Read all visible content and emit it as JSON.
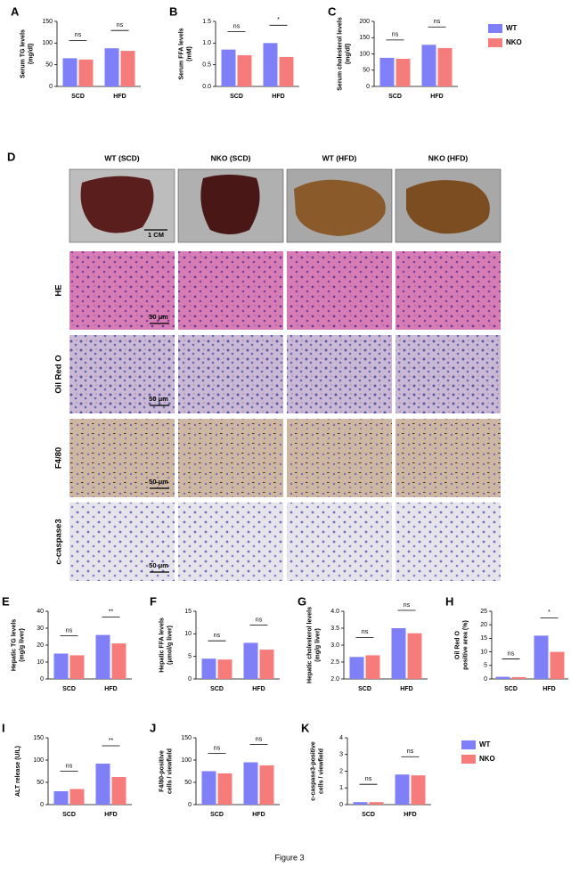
{
  "chart_data": [
    {
      "type": "bar",
      "panel": "A",
      "y_label": [
        "Serum TG levels",
        "(mg/dl)"
      ],
      "categories": [
        "SCD",
        "HFD"
      ],
      "series": [
        {
          "name": "WT",
          "color": "#7f7ff7",
          "values": [
            65,
            88
          ]
        },
        {
          "name": "NKO",
          "color": "#f67c7c",
          "values": [
            62,
            82
          ]
        }
      ],
      "annotations": [
        "ns",
        "ns"
      ],
      "ylim": [
        0,
        150
      ],
      "yticks": [
        0,
        50,
        100,
        150
      ]
    },
    {
      "type": "bar",
      "panel": "B",
      "y_label": [
        "Serum FFA levels",
        "(mM)"
      ],
      "categories": [
        "SCD",
        "HFD"
      ],
      "series": [
        {
          "name": "WT",
          "color": "#7f7ff7",
          "values": [
            0.85,
            1.0
          ]
        },
        {
          "name": "NKO",
          "color": "#f67c7c",
          "values": [
            0.72,
            0.68
          ]
        }
      ],
      "annotations": [
        "ns",
        "*"
      ],
      "ylim": [
        0,
        1.5
      ],
      "yticks": [
        {
          "value": 0,
          "label": "0.0"
        },
        0.5,
        {
          "value": 1,
          "label": "1.0"
        },
        1.5
      ]
    },
    {
      "type": "bar",
      "panel": "C",
      "y_label": [
        "Serum cholesterol levels",
        "(mg/dl)"
      ],
      "categories": [
        "SCD",
        "HFD"
      ],
      "series": [
        {
          "name": "WT",
          "color": "#7f7ff7",
          "values": [
            88,
            128
          ]
        },
        {
          "name": "NKO",
          "color": "#f67c7c",
          "values": [
            85,
            118
          ]
        }
      ],
      "annotations": [
        "ns",
        "ns"
      ],
      "ylim": [
        0,
        200
      ],
      "yticks": [
        0,
        50,
        100,
        150,
        200
      ],
      "legend": "right"
    },
    {
      "type": "bar",
      "panel": "E",
      "y_label": [
        "Hepatic TG levels",
        "(mg/g liver)"
      ],
      "categories": [
        "SCD",
        "HFD"
      ],
      "series": [
        {
          "name": "WT",
          "color": "#7f7ff7",
          "values": [
            15,
            26
          ]
        },
        {
          "name": "NKO",
          "color": "#f67c7c",
          "values": [
            14,
            21
          ]
        }
      ],
      "annotations": [
        "ns",
        "**"
      ],
      "ylim": [
        0,
        40
      ],
      "yticks": [
        0,
        10,
        20,
        30,
        40
      ]
    },
    {
      "type": "bar",
      "panel": "F",
      "y_label": [
        "Hepatic FFA levels",
        "(μmol/g liver)"
      ],
      "categories": [
        "SCD",
        "HFD"
      ],
      "series": [
        {
          "name": "WT",
          "color": "#7f7ff7",
          "values": [
            4.5,
            8
          ]
        },
        {
          "name": "NKO",
          "color": "#f67c7c",
          "values": [
            4.3,
            6.5
          ]
        }
      ],
      "annotations": [
        "ns",
        "ns"
      ],
      "ylim": [
        0,
        15
      ],
      "yticks": [
        0,
        5,
        10,
        15
      ]
    },
    {
      "type": "bar",
      "panel": "G",
      "y_label": [
        "Hepatic cholesterol levels",
        "(mg/g liver)"
      ],
      "categories": [
        "SCD",
        "HFD"
      ],
      "series": [
        {
          "name": "WT",
          "color": "#7f7ff7",
          "values": [
            2.65,
            3.5
          ]
        },
        {
          "name": "NKO",
          "color": "#f67c7c",
          "values": [
            2.7,
            3.35
          ]
        }
      ],
      "annotations": [
        "ns",
        "ns"
      ],
      "ylim": [
        2,
        4
      ],
      "yticks": [
        {
          "value": 2,
          "label": "2.0"
        },
        2.5,
        {
          "value": 3,
          "label": "3.0"
        },
        3.5,
        {
          "value": 4,
          "label": "4.0"
        }
      ]
    },
    {
      "type": "bar",
      "panel": "H",
      "y_label": [
        "Oil Red O",
        "positive area (%)"
      ],
      "categories": [
        "SCD",
        "HFD"
      ],
      "series": [
        {
          "name": "WT",
          "color": "#7f7ff7",
          "values": [
            0.8,
            16
          ]
        },
        {
          "name": "NKO",
          "color": "#f67c7c",
          "values": [
            0.7,
            10
          ]
        }
      ],
      "annotations": [
        "ns",
        "*"
      ],
      "ylim": [
        0,
        25
      ],
      "yticks": [
        0,
        5,
        10,
        15,
        20,
        25
      ]
    },
    {
      "type": "bar",
      "panel": "I",
      "y_label": [
        "ALT release (U/L)"
      ],
      "categories": [
        "SCD",
        "HFD"
      ],
      "series": [
        {
          "name": "WT",
          "color": "#7f7ff7",
          "values": [
            30,
            92
          ]
        },
        {
          "name": "NKO",
          "color": "#f67c7c",
          "values": [
            35,
            62
          ]
        }
      ],
      "annotations": [
        "ns",
        "**"
      ],
      "ylim": [
        0,
        150
      ],
      "yticks": [
        0,
        50,
        100,
        150
      ]
    },
    {
      "type": "bar",
      "panel": "J",
      "y_label": [
        "F4/80-positive",
        "cells / viewfield"
      ],
      "categories": [
        "SCD",
        "HFD"
      ],
      "series": [
        {
          "name": "WT",
          "color": "#7f7ff7",
          "values": [
            75,
            95
          ]
        },
        {
          "name": "NKO",
          "color": "#f67c7c",
          "values": [
            70,
            88
          ]
        }
      ],
      "annotations": [
        "ns",
        "ns"
      ],
      "ylim": [
        0,
        150
      ],
      "yticks": [
        0,
        50,
        100,
        150
      ]
    },
    {
      "type": "bar",
      "panel": "K",
      "y_label": [
        "c-caspase3-positive",
        "cells / viewfield"
      ],
      "categories": [
        "SCD",
        "HFD"
      ],
      "series": [
        {
          "name": "WT",
          "color": "#7f7ff7",
          "values": [
            0.15,
            1.8
          ]
        },
        {
          "name": "NKO",
          "color": "#f67c7c",
          "values": [
            0.15,
            1.75
          ]
        }
      ],
      "annotations": [
        "ns",
        "ns"
      ],
      "ylim": [
        0,
        4
      ],
      "yticks": [
        0,
        1,
        2,
        3,
        4
      ],
      "legend": "right"
    }
  ],
  "micrograph_panel": {
    "panel": "D",
    "columns": [
      "WT (SCD)",
      "NKO (SCD)",
      "WT (HFD)",
      "NKO (HFD)"
    ],
    "rows": [
      "HE",
      "Oil Red O",
      "F4/80",
      "c-caspase3"
    ],
    "photo_scale": "1 CM",
    "scale_labels": [
      "50 μm",
      "50 μm",
      "50 μm",
      "50 μm"
    ]
  },
  "caption": "Figure 3"
}
